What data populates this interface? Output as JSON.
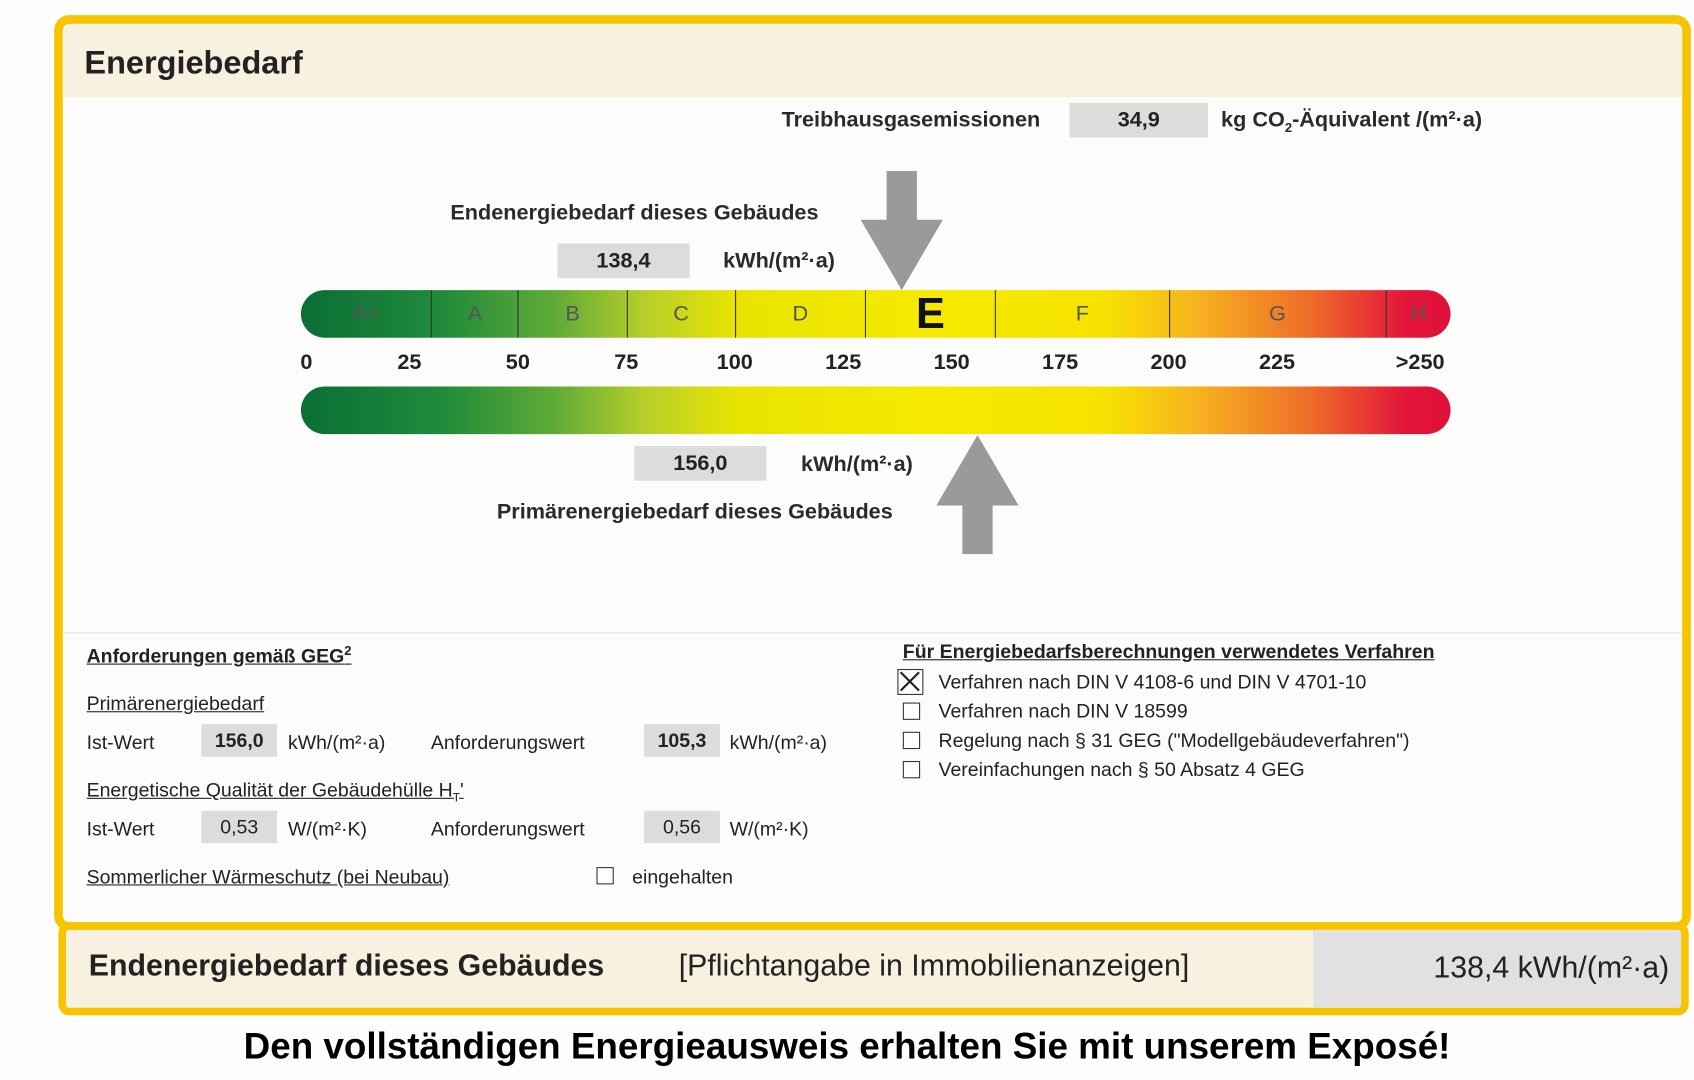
{
  "header": {
    "title": "Energiebedarf"
  },
  "emissions": {
    "label": "Treibhausgasemissionen",
    "value": "34,9",
    "unit_pre": "kg CO",
    "unit_sub": "2",
    "unit_post": "-Äquivalent /(m²·a)"
  },
  "end_energy": {
    "label": "Endenergiebedarf dieses Gebäudes",
    "value": "138,4",
    "numeric": 138.4,
    "unit": "kWh/(m²·a)"
  },
  "primary_energy": {
    "label": "Primärenergiebedarf dieses Gebäudes",
    "value": "156,0",
    "numeric": 156.0,
    "unit": "kWh/(m²·a)"
  },
  "scale": {
    "classes": [
      {
        "label": "A+",
        "from": 0,
        "to": 30
      },
      {
        "label": "A",
        "from": 30,
        "to": 50
      },
      {
        "label": "B",
        "from": 50,
        "to": 75
      },
      {
        "label": "C",
        "from": 75,
        "to": 100
      },
      {
        "label": "D",
        "from": 100,
        "to": 130
      },
      {
        "label": "E",
        "from": 130,
        "to": 160
      },
      {
        "label": "F",
        "from": 160,
        "to": 200
      },
      {
        "label": "G",
        "from": 200,
        "to": 250
      },
      {
        "label": "H",
        "from": 250,
        "to": 265
      }
    ],
    "active_class": "E",
    "ticks": [
      {
        "label": "0",
        "value": 0
      },
      {
        "label": "25",
        "value": 25
      },
      {
        "label": "50",
        "value": 50
      },
      {
        "label": "75",
        "value": 75
      },
      {
        "label": "100",
        "value": 100
      },
      {
        "label": "125",
        "value": 125
      },
      {
        "label": "150",
        "value": 150
      },
      {
        "label": "175",
        "value": 175
      },
      {
        "label": "200",
        "value": 200
      },
      {
        "label": "225",
        "value": 225
      },
      {
        "label": ">250",
        "value": 258
      }
    ],
    "max": 265,
    "colors": {
      "green": "#0b6e36",
      "yellow": "#f6ea00",
      "orange": "#f6b21e",
      "red": "#e0103a"
    }
  },
  "requirements": {
    "title": "Anforderungen gemäß GEG",
    "title_sup": "2",
    "primary": {
      "title": "Primärenergiebedarf",
      "ist_label": "Ist-Wert",
      "ist_value": "156,0",
      "ist_unit": "kWh/(m²·a)",
      "req_label": "Anforderungswert",
      "req_value": "105,3",
      "req_unit": "kWh/(m²·a)"
    },
    "envelope": {
      "title": "Energetische Qualität der Gebäudehülle H",
      "title_sub": "T",
      "title_post": "'",
      "ist_label": "Ist-Wert",
      "ist_value": "0,53",
      "ist_unit": "W/(m²·K)",
      "req_label": "Anforderungswert",
      "req_value": "0,56",
      "req_unit": "W/(m²·K)"
    },
    "summer": {
      "title": "Sommerlicher Wärmeschutz (bei Neubau)",
      "checkbox_label": "eingehalten",
      "checked": false
    }
  },
  "methods": {
    "title": "Für Energiebedarfsberechnungen verwendetes Verfahren",
    "items": [
      {
        "label": "Verfahren nach DIN V 4108-6 und DIN V 4701-10",
        "checked": true
      },
      {
        "label": "Verfahren nach DIN V 18599",
        "checked": false
      },
      {
        "label": "Regelung nach § 31 GEG (\"Modellgebäudeverfahren\")",
        "checked": false
      },
      {
        "label": "Vereinfachungen nach § 50 Absatz 4 GEG",
        "checked": false
      }
    ]
  },
  "summary": {
    "label": "Endenergiebedarf dieses Gebäudes",
    "note": "[Pflichtangabe in Immobilienanzeigen]",
    "value": "138,4 kWh/(m²·a)"
  },
  "footer": {
    "text": "Den vollständigen Energieausweis erhalten Sie mit unserem Exposé!"
  }
}
